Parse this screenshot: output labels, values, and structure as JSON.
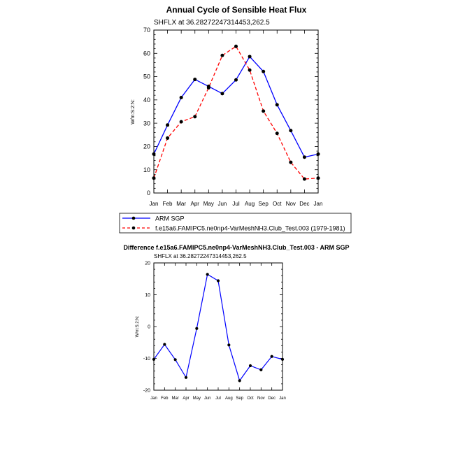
{
  "chart_data": [
    {
      "type": "line",
      "title": "Annual Cycle of Sensible Heat Flux",
      "subtitle": "SHFLX at 36.28272247314453,262.5",
      "ylabel": "W/m:S:2:N:",
      "xlabel": "",
      "categories": [
        "Jan",
        "Feb",
        "Mar",
        "Apr",
        "May",
        "Jun",
        "Jul",
        "Aug",
        "Sep",
        "Oct",
        "Nov",
        "Dec",
        "Jan"
      ],
      "ylim": [
        0,
        70
      ],
      "yticks": [
        0,
        10,
        20,
        30,
        40,
        50,
        60,
        70
      ],
      "grid": false,
      "legend_position": "below",
      "series": [
        {
          "name": "ARM SGP",
          "color": "#0000ff",
          "style": "solid",
          "values": [
            16.7,
            29.2,
            41.0,
            48.8,
            45.8,
            42.7,
            48.6,
            58.6,
            52.2,
            37.9,
            26.8,
            15.4,
            16.7
          ]
        },
        {
          "name": "f.e15a6.FAMIPC5.ne0np4-VarMeshNH3.Club_Test.003 (1979-1981)",
          "color": "#ff0000",
          "style": "dashed",
          "values": [
            6.4,
            23.6,
            30.6,
            32.8,
            45.2,
            59.1,
            63.0,
            52.8,
            35.2,
            25.6,
            13.2,
            6.0,
            6.4
          ]
        }
      ]
    },
    {
      "type": "line",
      "title": "Difference f.e15a6.FAMIPC5.ne0np4-VarMeshNH3.Club_Test.003 - ARM SGP",
      "subtitle": "SHFLX at 36.28272247314453,262.5",
      "ylabel": "W/m:S:2:N:",
      "xlabel": "",
      "categories": [
        "Jan",
        "Feb",
        "Mar",
        "Apr",
        "May",
        "Jun",
        "Jul",
        "Aug",
        "Sep",
        "Oct",
        "Nov",
        "Dec",
        "Jan"
      ],
      "ylim": [
        -20,
        20
      ],
      "yticks": [
        -20,
        -10,
        0,
        10,
        20
      ],
      "grid": false,
      "series": [
        {
          "color": "#0000ff",
          "style": "solid",
          "values": [
            -10.3,
            -5.6,
            -10.4,
            -16.0,
            -0.6,
            16.4,
            14.4,
            -5.8,
            -17.0,
            -12.3,
            -13.6,
            -9.4,
            -10.3
          ]
        }
      ]
    }
  ]
}
